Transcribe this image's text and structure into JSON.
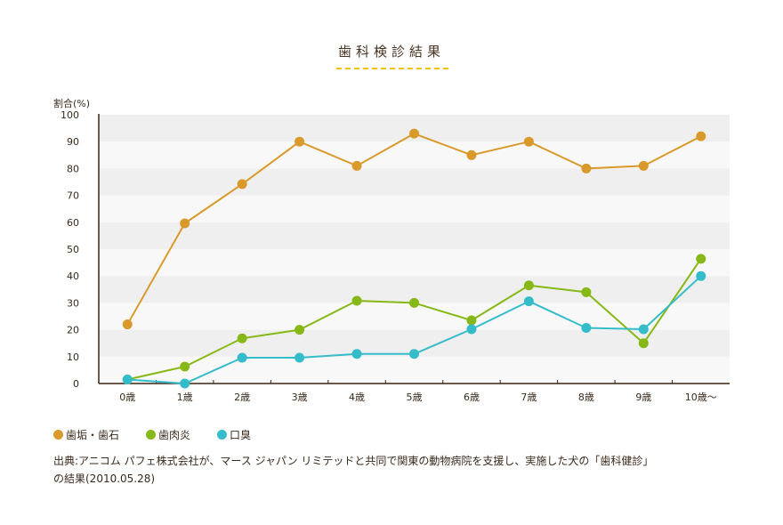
{
  "chart_data": {
    "type": "line",
    "title": "歯科検診結果",
    "ylabel": "割合(%)",
    "xlabel": "",
    "ylim": [
      0,
      100
    ],
    "yticks": [
      0,
      10,
      20,
      30,
      40,
      50,
      60,
      70,
      80,
      90,
      100
    ],
    "grid": "horizontal alternating bands",
    "legend_position": "bottom-left",
    "categories": [
      "0歳",
      "1歳",
      "2歳",
      "3歳",
      "4歳",
      "5歳",
      "6歳",
      "7歳",
      "8歳",
      "9歳",
      "10歳〜"
    ],
    "series": [
      {
        "name": "歯垢・歯石",
        "color": "#d99a2b",
        "values": [
          22,
          59.6,
          74.2,
          90,
          81,
          93,
          85,
          90,
          80,
          81,
          92
        ]
      },
      {
        "name": "歯肉炎",
        "color": "#86b817",
        "values": [
          1.5,
          6.3,
          16.8,
          20,
          30.8,
          30,
          23.5,
          36.5,
          34,
          15,
          46.4
        ]
      },
      {
        "name": "口臭",
        "color": "#35bccb",
        "values": [
          1.5,
          0,
          9.6,
          9.6,
          11,
          11,
          20.2,
          30.6,
          20.7,
          20.2,
          40
        ]
      }
    ]
  },
  "header": {
    "title": "歯科検診結果",
    "underline_color": "#f2c200"
  },
  "axis": {
    "y_unit_label": "割合(%)"
  },
  "legend": [
    {
      "label": "歯垢・歯石",
      "color": "#d99a2b"
    },
    {
      "label": "歯肉炎",
      "color": "#86b817"
    },
    {
      "label": "口臭",
      "color": "#35bccb"
    }
  ],
  "note": {
    "line1": "出典:アニコム パフェ株式会社が、マース ジャパン リミテッドと共同で関東の動物病院を支援し、実施した犬の「歯科健診」",
    "line2": "の結果(2010.05.28)"
  }
}
